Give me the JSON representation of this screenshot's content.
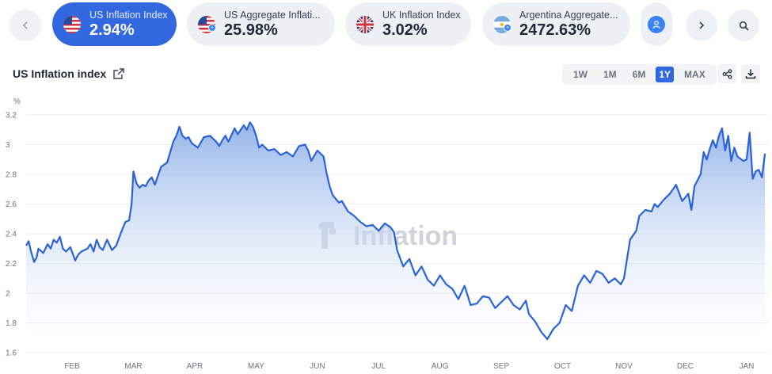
{
  "topbar": {
    "prev_icon": "chevron-left-icon",
    "next_icon": "chevron-right-icon",
    "search_icon": "search-icon",
    "profile_icon": "user-icon",
    "cards": [
      {
        "label": "US Inflation Index",
        "value": "2.94%",
        "flag": "us-flag-icon",
        "active": true
      },
      {
        "label": "US Aggregate Inflati...",
        "value": "25.98%",
        "flag": "us-flag-icon",
        "active": false
      },
      {
        "label": "UK Inflation Index",
        "value": "3.02%",
        "flag": "uk-flag-icon",
        "active": false
      },
      {
        "label": "Argentina Aggregate...",
        "value": "2472.63%",
        "flag": "argentina-flag-icon",
        "active": false
      }
    ]
  },
  "chart_header": {
    "title": "US Inflation index",
    "ranges": [
      "1W",
      "1M",
      "6M",
      "1Y",
      "MAX"
    ],
    "active_range": "1Y",
    "share_icon": "share-icon",
    "download_icon": "download-icon"
  },
  "watermark": "Inflation",
  "colors": {
    "accent": "#3367e0",
    "line": "#2a62d8",
    "fill_top": "#8fb0e8",
    "fill_bottom": "#ffffff"
  },
  "chart_data": {
    "type": "area",
    "ylabel": "%",
    "ylim": [
      1.6,
      3.2
    ],
    "yticks": [
      "3.2",
      "3",
      "2.8",
      "2.6",
      "2.4",
      "2.2",
      "2",
      "1.8",
      "1.6"
    ],
    "ytick_values": [
      3.2,
      3.0,
      2.8,
      2.6,
      2.4,
      2.2,
      2.0,
      1.8,
      1.6
    ],
    "xlim": [
      0,
      12.1
    ],
    "xticks": [
      "FEB",
      "MAR",
      "APR",
      "MAY",
      "JUN",
      "JUL",
      "AUG",
      "SEP",
      "OCT",
      "NOV",
      "DEC",
      "JAN"
    ],
    "xtick_values": [
      0.75,
      1.75,
      2.75,
      3.75,
      4.75,
      5.75,
      6.75,
      7.75,
      8.75,
      9.75,
      10.75,
      11.75
    ],
    "grid": true,
    "x": [
      0,
      0.04,
      0.08,
      0.13,
      0.17,
      0.2,
      0.28,
      0.35,
      0.4,
      0.45,
      0.5,
      0.55,
      0.6,
      0.65,
      0.72,
      0.8,
      0.85,
      0.9,
      1.0,
      1.05,
      1.1,
      1.15,
      1.2,
      1.25,
      1.32,
      1.4,
      1.47,
      1.55,
      1.62,
      1.68,
      1.72,
      1.75,
      1.8,
      1.85,
      1.9,
      1.95,
      2.0,
      2.05,
      2.1,
      2.2,
      2.3,
      2.35,
      2.4,
      2.45,
      2.5,
      2.55,
      2.6,
      2.65,
      2.7,
      2.8,
      2.9,
      3.0,
      3.1,
      3.15,
      3.2,
      3.25,
      3.3,
      3.4,
      3.45,
      3.5,
      3.55,
      3.6,
      3.65,
      3.7,
      3.75,
      3.8,
      3.85,
      3.95,
      4.05,
      4.15,
      4.25,
      4.35,
      4.45,
      4.55,
      4.6,
      4.65,
      4.75,
      4.85,
      4.9,
      4.95,
      5.0,
      5.1,
      5.15,
      5.25,
      5.35,
      5.45,
      5.55,
      5.65,
      5.75,
      5.85,
      5.95,
      6.0,
      6.05,
      6.15,
      6.25,
      6.35,
      6.45,
      6.55,
      6.65,
      6.75,
      6.85,
      6.95,
      7.05,
      7.15,
      7.25,
      7.35,
      7.45,
      7.55,
      7.65,
      7.75,
      7.85,
      7.95,
      8.05,
      8.15,
      8.2,
      8.3,
      8.4,
      8.5,
      8.6,
      8.7,
      8.8,
      8.9,
      9.0,
      9.1,
      9.2,
      9.3,
      9.4,
      9.5,
      9.6,
      9.7,
      9.75,
      9.85,
      9.95,
      10.0,
      10.1,
      10.2,
      10.25,
      10.3,
      10.4,
      10.5,
      10.6,
      10.7,
      10.8,
      10.85,
      10.9,
      11.0,
      11.05,
      11.1,
      11.15,
      11.2,
      11.25,
      11.3,
      11.35,
      11.4,
      11.45,
      11.5,
      11.55,
      11.6,
      11.7,
      11.75,
      11.8,
      11.85,
      11.9,
      11.95,
      12.0,
      12.05
    ],
    "y": [
      2.32,
      2.35,
      2.28,
      2.21,
      2.24,
      2.3,
      2.27,
      2.33,
      2.3,
      2.36,
      2.34,
      2.38,
      2.3,
      2.28,
      2.31,
      2.22,
      2.26,
      2.28,
      2.3,
      2.33,
      2.28,
      2.36,
      2.31,
      2.29,
      2.36,
      2.29,
      2.32,
      2.41,
      2.48,
      2.49,
      2.6,
      2.82,
      2.74,
      2.71,
      2.73,
      2.72,
      2.76,
      2.78,
      2.73,
      2.85,
      2.88,
      2.95,
      3.02,
      3.06,
      3.12,
      3.06,
      3.04,
      3.05,
      3.01,
      2.98,
      3.05,
      3.06,
      3.02,
      2.99,
      3.03,
      3.06,
      3.02,
      3.11,
      3.07,
      3.1,
      3.13,
      3.1,
      3.15,
      3.12,
      3.06,
      2.98,
      3.0,
      2.96,
      2.97,
      2.93,
      2.95,
      2.92,
      2.99,
      3.0,
      2.96,
      2.89,
      2.96,
      2.92,
      2.81,
      2.72,
      2.66,
      2.61,
      2.62,
      2.55,
      2.52,
      2.48,
      2.45,
      2.46,
      2.42,
      2.47,
      2.44,
      2.41,
      2.29,
      2.18,
      2.23,
      2.12,
      2.18,
      2.09,
      2.05,
      2.12,
      2.06,
      2.03,
      1.96,
      2.05,
      1.92,
      1.93,
      1.98,
      1.97,
      1.9,
      1.94,
      1.98,
      1.92,
      1.89,
      1.95,
      1.86,
      1.81,
      1.74,
      1.69,
      1.76,
      1.8,
      1.92,
      1.88,
      2.05,
      2.12,
      2.07,
      2.15,
      2.13,
      2.07,
      2.1,
      2.06,
      2.1,
      2.36,
      2.42,
      2.52,
      2.56,
      2.55,
      2.6,
      2.58,
      2.63,
      2.67,
      2.73,
      2.62,
      2.67,
      2.56,
      2.72,
      2.8,
      2.95,
      2.9,
      2.97,
      3.03,
      2.98,
      3.06,
      3.11,
      2.96,
      3.06,
      2.89,
      2.98,
      2.92,
      2.89,
      2.9,
      3.08,
      2.77,
      2.82,
      2.83,
      2.78,
      2.94
    ]
  }
}
